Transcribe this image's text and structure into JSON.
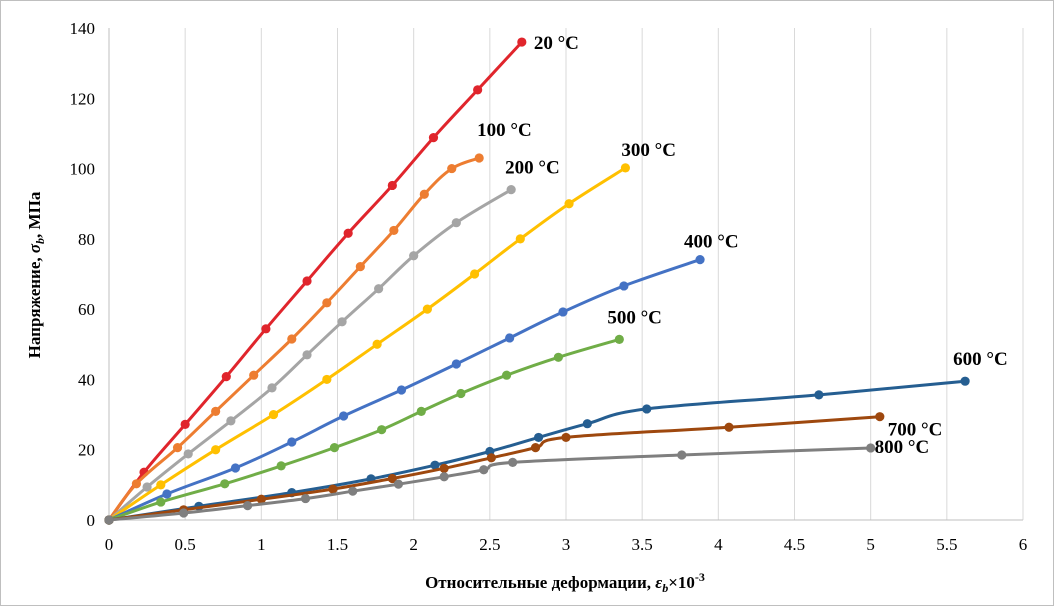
{
  "chart_data": {
    "type": "line",
    "xlabel": "Относительные деформации, ",
    "xlabel_symbol": "ε",
    "xlabel_sub": "b",
    "xlabel_unit": "×10",
    "xlabel_exp": "-3",
    "ylabel": "Напряжение, ",
    "ylabel_symbol": "σ",
    "ylabel_sub": "b",
    "ylabel_unit": ", МПа",
    "xlim": [
      0,
      6
    ],
    "ylim": [
      0,
      140
    ],
    "x_ticks": [
      "0",
      "0.5",
      "1",
      "1.5",
      "2",
      "2.5",
      "3",
      "3.5",
      "4",
      "4.5",
      "5",
      "5.5",
      "6"
    ],
    "x_tick_values": [
      0,
      0.5,
      1,
      1.5,
      2,
      2.5,
      3,
      3.5,
      4,
      4.5,
      5,
      5.5,
      6
    ],
    "y_ticks": [
      "0",
      "20",
      "40",
      "60",
      "80",
      "100",
      "120",
      "140"
    ],
    "y_tick_values": [
      0,
      20,
      40,
      60,
      80,
      100,
      120,
      140
    ],
    "grid": "vertical",
    "series": [
      {
        "name": "20 °C",
        "color": "#e0252c",
        "x": [
          0,
          0.23,
          0.5,
          0.77,
          1.03,
          1.3,
          1.57,
          1.86,
          2.13,
          2.42,
          2.71
        ],
        "y": [
          0,
          13.6,
          27.2,
          40.8,
          54.4,
          68,
          81.6,
          95.2,
          108.8,
          122.4,
          136
        ]
      },
      {
        "name": "100 °C",
        "color": "#ed7d31",
        "x": [
          0,
          0.18,
          0.45,
          0.7,
          0.95,
          1.2,
          1.43,
          1.65,
          1.87,
          2.07,
          2.25,
          2.43
        ],
        "y": [
          0,
          10.3,
          20.6,
          30.9,
          41.2,
          51.5,
          61.8,
          72.1,
          82.4,
          92.7,
          100,
          103
        ]
      },
      {
        "name": "200 °C",
        "color": "#a5a5a5",
        "x": [
          0,
          0.25,
          0.52,
          0.8,
          1.07,
          1.3,
          1.53,
          1.77,
          2.0,
          2.28,
          2.64
        ],
        "y": [
          0,
          9.4,
          18.8,
          28.2,
          37.6,
          47,
          56.4,
          65.8,
          75.2,
          84.6,
          94
        ]
      },
      {
        "name": "300 °C",
        "color": "#ffc000",
        "x": [
          0,
          0.34,
          0.7,
          1.08,
          1.43,
          1.76,
          2.09,
          2.4,
          2.7,
          3.02,
          3.39
        ],
        "y": [
          0,
          10,
          20,
          30,
          40,
          50,
          60,
          70,
          80,
          90,
          100.2
        ]
      },
      {
        "name": "400 °C",
        "color": "#4472c4",
        "x": [
          0,
          0.38,
          0.83,
          1.2,
          1.54,
          1.92,
          2.28,
          2.63,
          2.98,
          3.38,
          3.88
        ],
        "y": [
          0,
          7.4,
          14.8,
          22.2,
          29.6,
          37,
          44.4,
          51.8,
          59.2,
          66.6,
          74.1
        ]
      },
      {
        "name": "500 °C",
        "color": "#70ad47",
        "x": [
          0,
          0.34,
          0.76,
          1.13,
          1.48,
          1.79,
          2.05,
          2.31,
          2.61,
          2.95,
          3.35
        ],
        "y": [
          0,
          5.1,
          10.3,
          15.4,
          20.6,
          25.7,
          30.9,
          36,
          41.2,
          46.3,
          51.4
        ]
      },
      {
        "name": "600 °C",
        "color": "#255e91",
        "x": [
          0,
          0.59,
          1.2,
          1.72,
          2.14,
          2.5,
          2.82,
          3.14,
          3.53,
          4.66,
          5.62
        ],
        "y": [
          0,
          3.9,
          7.8,
          11.7,
          15.6,
          19.5,
          23.5,
          27.4,
          31.6,
          35.6,
          39.5
        ]
      },
      {
        "name": "700 °C",
        "color": "#9e480e",
        "x": [
          0,
          0.49,
          1.0,
          1.47,
          1.86,
          2.2,
          2.51,
          2.8,
          3.0,
          4.07,
          5.06
        ],
        "y": [
          0,
          2.9,
          5.9,
          8.8,
          11.8,
          14.7,
          17.7,
          20.6,
          23.5,
          26.4,
          29.4
        ]
      },
      {
        "name": "800 °C",
        "color": "#7f7f7f",
        "x": [
          0,
          0.49,
          0.91,
          1.29,
          1.6,
          1.9,
          2.2,
          2.46,
          2.65,
          3.76,
          5.0
        ],
        "y": [
          0,
          2,
          4.1,
          6.1,
          8.2,
          10.2,
          12.3,
          14.3,
          16.4,
          18.5,
          20.5
        ]
      }
    ]
  }
}
